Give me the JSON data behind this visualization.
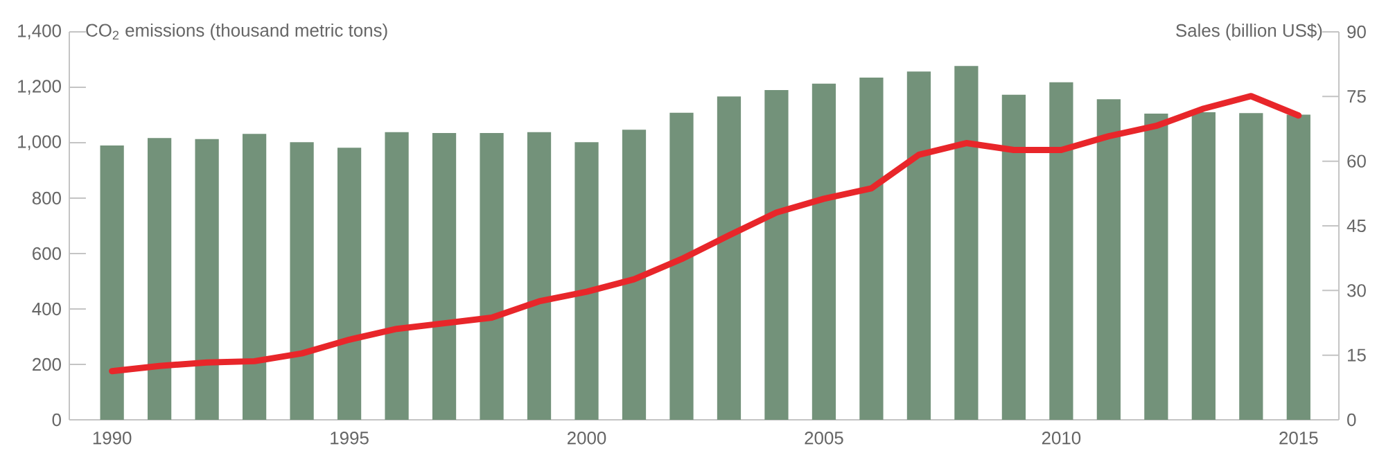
{
  "chart_data": {
    "type": "bar",
    "ylabel": "CO$_{2}$ emissions (thousand metric tons)",
    "y2label": "Sales (billion US$)",
    "x": [
      1990,
      1991,
      1992,
      1993,
      1994,
      1995,
      1996,
      1997,
      1998,
      1999,
      2000,
      2001,
      2002,
      2003,
      2004,
      2005,
      2006,
      2007,
      2008,
      2009,
      2010,
      2011,
      2012,
      2013,
      2014,
      2015
    ],
    "xlim": [
      1989.1,
      2015.85
    ],
    "xticks": [
      1990,
      1995,
      2000,
      2005,
      2010,
      2015
    ],
    "ylim": [
      0,
      1400
    ],
    "yticks": [
      {
        "value": 0,
        "label": "0"
      },
      {
        "value": 200,
        "label": "200"
      },
      {
        "value": 400,
        "label": "400"
      },
      {
        "value": 600,
        "label": "600"
      },
      {
        "value": 800,
        "label": "800"
      },
      {
        "value": 1000,
        "label": "1,000"
      },
      {
        "value": 1200,
        "label": "1,200"
      },
      {
        "value": 1400,
        "label": "1,400"
      }
    ],
    "y2lim": [
      0,
      90
    ],
    "y2ticks": [
      0,
      15,
      30,
      45,
      60,
      75,
      90
    ],
    "series": [
      {
        "type": "bar",
        "color": "#73927a",
        "values": [
          990,
          1017,
          1013,
          1032,
          1002,
          982,
          1038,
          1035,
          1035,
          1038,
          1002,
          1047,
          1108,
          1167,
          1190,
          1213,
          1235,
          1257,
          1277,
          1173,
          1218,
          1157,
          1105,
          1110,
          1107,
          1101
        ]
      },
      {
        "type": "line",
        "axis": "y2",
        "color": "#e8262a",
        "values": [
          11.3,
          12.5,
          13.3,
          13.6,
          15.4,
          18.6,
          21.1,
          22.4,
          23.7,
          27.5,
          29.7,
          32.6,
          37.3,
          42.8,
          48.1,
          51.3,
          53.7,
          61.5,
          64.2,
          62.6,
          62.6,
          65.8,
          68.2,
          72.2,
          75.1,
          70.6
        ]
      }
    ]
  }
}
